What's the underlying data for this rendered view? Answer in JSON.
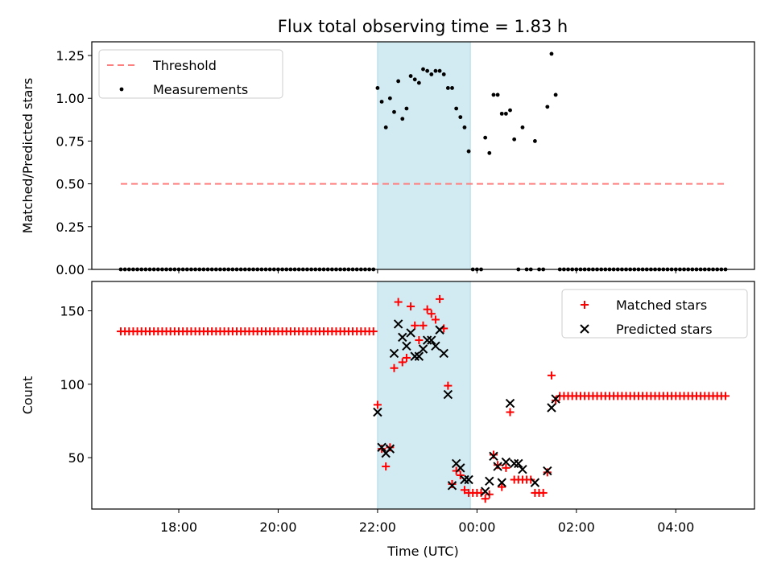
{
  "title": "Flux total observing time = 1.83 h",
  "colors": {
    "threshold": "#ff7f7f",
    "measurements": "#000000",
    "matched": "#ff0000",
    "predicted": "#000000",
    "span": "#add8e6"
  },
  "chart_data": [
    {
      "type": "scatter",
      "ylabel": "Matched/Predicted stars",
      "ylim": [
        0,
        1.33
      ],
      "yticks": [
        0,
        0.25,
        0.5,
        0.75,
        1.0,
        1.25
      ],
      "ytick_labels": [
        "0.00",
        "0.25",
        "0.50",
        "0.75",
        "1.00",
        "1.25"
      ],
      "xlim": [
        "16:15",
        "05:35"
      ],
      "highlight_span": [
        "22:00",
        "23:52"
      ],
      "threshold": {
        "name": "Threshold",
        "value": 0.5,
        "x_range": [
          "16:50",
          "05:00"
        ],
        "style": "dashed"
      },
      "legend": {
        "position": "upper left",
        "entries": [
          "Threshold",
          "Measurements"
        ]
      },
      "series": [
        {
          "name": "Measurements",
          "points": [
            [
              "16:50",
              0
            ],
            [
              "16:55",
              0
            ],
            [
              "17:00",
              0
            ],
            [
              "17:05",
              0
            ],
            [
              "17:10",
              0
            ],
            [
              "17:15",
              0
            ],
            [
              "17:20",
              0
            ],
            [
              "17:25",
              0
            ],
            [
              "17:30",
              0
            ],
            [
              "17:35",
              0
            ],
            [
              "17:40",
              0
            ],
            [
              "17:45",
              0
            ],
            [
              "17:50",
              0
            ],
            [
              "17:55",
              0
            ],
            [
              "18:00",
              0
            ],
            [
              "18:05",
              0
            ],
            [
              "18:10",
              0
            ],
            [
              "18:15",
              0
            ],
            [
              "18:20",
              0
            ],
            [
              "18:25",
              0
            ],
            [
              "18:30",
              0
            ],
            [
              "18:35",
              0
            ],
            [
              "18:40",
              0
            ],
            [
              "18:45",
              0
            ],
            [
              "18:50",
              0
            ],
            [
              "18:55",
              0
            ],
            [
              "19:00",
              0
            ],
            [
              "19:05",
              0
            ],
            [
              "19:10",
              0
            ],
            [
              "19:15",
              0
            ],
            [
              "19:20",
              0
            ],
            [
              "19:25",
              0
            ],
            [
              "19:30",
              0
            ],
            [
              "19:35",
              0
            ],
            [
              "19:40",
              0
            ],
            [
              "19:45",
              0
            ],
            [
              "19:50",
              0
            ],
            [
              "19:55",
              0
            ],
            [
              "20:00",
              0
            ],
            [
              "20:05",
              0
            ],
            [
              "20:10",
              0
            ],
            [
              "20:15",
              0
            ],
            [
              "20:20",
              0
            ],
            [
              "20:25",
              0
            ],
            [
              "20:30",
              0
            ],
            [
              "20:35",
              0
            ],
            [
              "20:40",
              0
            ],
            [
              "20:45",
              0
            ],
            [
              "20:50",
              0
            ],
            [
              "20:55",
              0
            ],
            [
              "21:00",
              0
            ],
            [
              "21:05",
              0
            ],
            [
              "21:10",
              0
            ],
            [
              "21:15",
              0
            ],
            [
              "21:20",
              0
            ],
            [
              "21:25",
              0
            ],
            [
              "21:30",
              0
            ],
            [
              "21:35",
              0
            ],
            [
              "21:40",
              0
            ],
            [
              "21:45",
              0
            ],
            [
              "21:50",
              0
            ],
            [
              "21:55",
              0
            ],
            [
              "22:00",
              1.06
            ],
            [
              "22:05",
              0.98
            ],
            [
              "22:10",
              0.83
            ],
            [
              "22:15",
              1.0
            ],
            [
              "22:20",
              0.92
            ],
            [
              "22:25",
              1.1
            ],
            [
              "22:30",
              0.88
            ],
            [
              "22:35",
              0.94
            ],
            [
              "22:40",
              1.13
            ],
            [
              "22:45",
              1.11
            ],
            [
              "22:50",
              1.09
            ],
            [
              "22:55",
              1.17
            ],
            [
              "23:00",
              1.16
            ],
            [
              "23:05",
              1.14
            ],
            [
              "23:10",
              1.16
            ],
            [
              "23:15",
              1.16
            ],
            [
              "23:20",
              1.14
            ],
            [
              "23:25",
              1.06
            ],
            [
              "23:30",
              1.06
            ],
            [
              "23:35",
              0.94
            ],
            [
              "23:40",
              0.89
            ],
            [
              "23:45",
              0.83
            ],
            [
              "23:50",
              0.69
            ],
            [
              "23:55",
              0
            ],
            [
              "00:00",
              0
            ],
            [
              "00:05",
              0
            ],
            [
              "00:10",
              0.77
            ],
            [
              "00:15",
              0.68
            ],
            [
              "00:20",
              1.02
            ],
            [
              "00:25",
              1.02
            ],
            [
              "00:30",
              0.91
            ],
            [
              "00:35",
              0.91
            ],
            [
              "00:40",
              0.93
            ],
            [
              "00:45",
              0.76
            ],
            [
              "00:50",
              0
            ],
            [
              "00:55",
              0.83
            ],
            [
              "01:00",
              0
            ],
            [
              "01:05",
              0
            ],
            [
              "01:10",
              0.75
            ],
            [
              "01:15",
              0
            ],
            [
              "01:20",
              0
            ],
            [
              "01:25",
              0.95
            ],
            [
              "01:30",
              1.26
            ],
            [
              "01:35",
              1.02
            ],
            [
              "01:40",
              0
            ],
            [
              "01:45",
              0
            ],
            [
              "01:50",
              0
            ],
            [
              "01:55",
              0
            ],
            [
              "02:00",
              0
            ],
            [
              "02:05",
              0
            ],
            [
              "02:10",
              0
            ],
            [
              "02:15",
              0
            ],
            [
              "02:20",
              0
            ],
            [
              "02:25",
              0
            ],
            [
              "02:30",
              0
            ],
            [
              "02:35",
              0
            ],
            [
              "02:40",
              0
            ],
            [
              "02:45",
              0
            ],
            [
              "02:50",
              0
            ],
            [
              "02:55",
              0
            ],
            [
              "03:00",
              0
            ],
            [
              "03:05",
              0
            ],
            [
              "03:10",
              0
            ],
            [
              "03:15",
              0
            ],
            [
              "03:20",
              0
            ],
            [
              "03:25",
              0
            ],
            [
              "03:30",
              0
            ],
            [
              "03:35",
              0
            ],
            [
              "03:40",
              0
            ],
            [
              "03:45",
              0
            ],
            [
              "03:50",
              0
            ],
            [
              "03:55",
              0
            ],
            [
              "04:00",
              0
            ],
            [
              "04:05",
              0
            ],
            [
              "04:10",
              0
            ],
            [
              "04:15",
              0
            ],
            [
              "04:20",
              0
            ],
            [
              "04:25",
              0
            ],
            [
              "04:30",
              0
            ],
            [
              "04:35",
              0
            ],
            [
              "04:40",
              0
            ],
            [
              "04:45",
              0
            ],
            [
              "04:50",
              0
            ],
            [
              "04:55",
              0
            ],
            [
              "05:00",
              0
            ]
          ]
        }
      ]
    },
    {
      "type": "scatter",
      "xlabel": "Time (UTC)",
      "ylabel": "Count",
      "ylim": [
        15,
        170
      ],
      "yticks": [
        50,
        100,
        150
      ],
      "ytick_labels": [
        "50",
        "100",
        "150"
      ],
      "xlim": [
        "16:15",
        "05:35"
      ],
      "xticks": [
        "18:00",
        "20:00",
        "22:00",
        "00:00",
        "02:00",
        "04:00"
      ],
      "highlight_span": [
        "22:00",
        "23:52"
      ],
      "legend": {
        "position": "upper right",
        "entries": [
          "Matched stars",
          "Predicted stars"
        ]
      },
      "series": [
        {
          "name": "Matched stars",
          "marker": "+",
          "constant_runs": [
            {
              "from": "16:50",
              "to": "21:55",
              "step_min": 5,
              "value": 136
            },
            {
              "from": "01:45",
              "to": "05:00",
              "step_min": 5,
              "value": 92
            }
          ],
          "points": [
            [
              "22:00",
              86
            ],
            [
              "22:05",
              56
            ],
            [
              "22:10",
              44
            ],
            [
              "22:15",
              57
            ],
            [
              "22:20",
              111
            ],
            [
              "22:25",
              156
            ],
            [
              "22:30",
              115
            ],
            [
              "22:35",
              118
            ],
            [
              "22:40",
              153
            ],
            [
              "22:45",
              140
            ],
            [
              "22:50",
              130
            ],
            [
              "22:55",
              140
            ],
            [
              "23:00",
              151
            ],
            [
              "23:05",
              148
            ],
            [
              "23:10",
              144
            ],
            [
              "23:15",
              158
            ],
            [
              "23:20",
              138
            ],
            [
              "23:25",
              99
            ],
            [
              "23:30",
              32
            ],
            [
              "23:35",
              41
            ],
            [
              "23:40",
              38
            ],
            [
              "23:45",
              28
            ],
            [
              "23:50",
              26
            ],
            [
              "23:55",
              26
            ],
            [
              "00:00",
              26
            ],
            [
              "00:05",
              26
            ],
            [
              "00:10",
              22
            ],
            [
              "00:15",
              25
            ],
            [
              "00:20",
              52
            ],
            [
              "00:25",
              45
            ],
            [
              "00:30",
              30
            ],
            [
              "00:35",
              43
            ],
            [
              "00:40",
              81
            ],
            [
              "00:45",
              35
            ],
            [
              "00:50",
              35
            ],
            [
              "00:55",
              35
            ],
            [
              "01:00",
              35
            ],
            [
              "01:05",
              35
            ],
            [
              "01:10",
              26
            ],
            [
              "01:15",
              26
            ],
            [
              "01:20",
              26
            ],
            [
              "01:25",
              40
            ],
            [
              "01:30",
              106
            ],
            [
              "01:35",
              89
            ],
            [
              "01:40",
              92
            ]
          ]
        },
        {
          "name": "Predicted stars",
          "marker": "x",
          "points": [
            [
              "22:00",
              81
            ],
            [
              "22:05",
              57
            ],
            [
              "22:10",
              53
            ],
            [
              "22:15",
              56
            ],
            [
              "22:20",
              121
            ],
            [
              "22:25",
              141
            ],
            [
              "22:30",
              132
            ],
            [
              "22:35",
              126
            ],
            [
              "22:40",
              135
            ],
            [
              "22:45",
              119
            ],
            [
              "22:50",
              119
            ],
            [
              "22:55",
              124
            ],
            [
              "23:00",
              130
            ],
            [
              "23:05",
              130
            ],
            [
              "23:10",
              126
            ],
            [
              "23:15",
              137
            ],
            [
              "23:20",
              121
            ],
            [
              "23:25",
              93
            ],
            [
              "23:30",
              31
            ],
            [
              "23:35",
              46
            ],
            [
              "23:40",
              43
            ],
            [
              "23:45",
              35
            ],
            [
              "23:50",
              35
            ],
            [
              "00:10",
              27
            ],
            [
              "00:15",
              34
            ],
            [
              "00:20",
              51
            ],
            [
              "00:25",
              44
            ],
            [
              "00:30",
              33
            ],
            [
              "00:35",
              47
            ],
            [
              "00:40",
              87
            ],
            [
              "00:45",
              46
            ],
            [
              "00:50",
              46
            ],
            [
              "00:55",
              42
            ],
            [
              "01:10",
              33
            ],
            [
              "01:25",
              41
            ],
            [
              "01:30",
              84
            ],
            [
              "01:35",
              90
            ]
          ]
        }
      ]
    }
  ]
}
